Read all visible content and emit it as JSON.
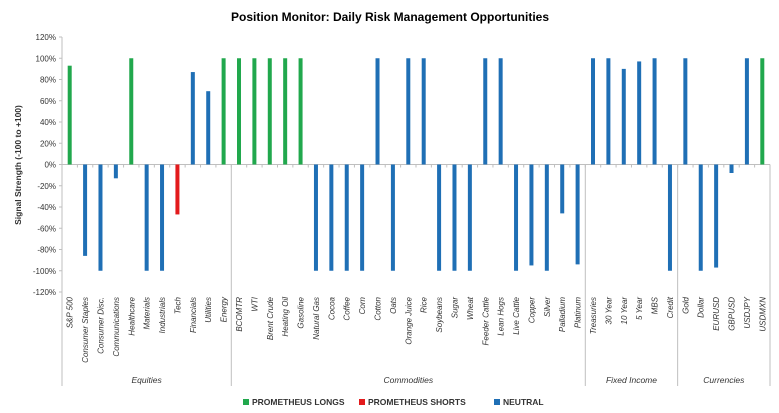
{
  "chart_data": {
    "type": "bar",
    "title": "Position Monitor: Daily Risk Management Opportunities",
    "ylabel": "Signal Strength (-100 to +100)",
    "xlabel": "",
    "ylim": [
      -120,
      120
    ],
    "yticks": [
      -120,
      -100,
      -80,
      -60,
      -40,
      -20,
      0,
      20,
      40,
      60,
      80,
      100,
      120
    ],
    "ytick_labels": [
      "-120%",
      "-100%",
      "-80%",
      "-60%",
      "-40%",
      "-20%",
      "0%",
      "20%",
      "40%",
      "60%",
      "80%",
      "100%",
      "120%"
    ],
    "grid": false,
    "legend_position": "bottom",
    "colors": {
      "long": "#21A84D",
      "short": "#E31A1C",
      "neutral": "#1F6FB5"
    },
    "legend": [
      {
        "key": "long",
        "label": "PROMETHEUS LONGS"
      },
      {
        "key": "short",
        "label": "PROMETHEUS SHORTS"
      },
      {
        "key": "neutral",
        "label": "NEUTRAL"
      }
    ],
    "groups": [
      {
        "label": "Equities",
        "categories": [
          "S&P 500",
          "Consumer Staples",
          "Consumer Disc.",
          "Communications",
          "Healthcare",
          "Materials",
          "Industrials",
          "Tech",
          "Financials",
          "Utilities",
          "Energy"
        ]
      },
      {
        "label": "Commodities",
        "categories": [
          "BCOMTR",
          "WTI",
          "Brent Crude",
          "Heating Oil",
          "Gasoline",
          "Natural Gas",
          "Cocoa",
          "Coffee",
          "Corn",
          "Cotton",
          "Oats",
          "Orange Juice",
          "Rice",
          "Soybeans",
          "Sugar",
          "Wheat",
          "Feeder Cattle",
          "Lean Hogs",
          "Live Cattle",
          "Copper",
          "Silver",
          "Palladium",
          "Platinum"
        ]
      },
      {
        "label": "Fixed Income",
        "categories": [
          "Treasuries",
          "30 Year",
          "10 Year",
          "5 Year",
          "MBS",
          "Credit"
        ]
      },
      {
        "label": "Currencies",
        "categories": [
          "Gold",
          "Dollar",
          "EURUSD",
          "GBPUSD",
          "USDJPY",
          "USDMXN"
        ]
      }
    ],
    "series": [
      {
        "name": "PROMETHEUS LONGS",
        "key": "long",
        "values": [
          93,
          0,
          0,
          0,
          100,
          0,
          0,
          0,
          0,
          0,
          100,
          100,
          100,
          100,
          100,
          100,
          0,
          0,
          0,
          0,
          0,
          0,
          0,
          0,
          0,
          0,
          0,
          0,
          0,
          0,
          0,
          0,
          0,
          0,
          0,
          0,
          0,
          0,
          0,
          0,
          0,
          0,
          0,
          0,
          0,
          100
        ]
      },
      {
        "name": "PROMETHEUS SHORTS",
        "key": "short",
        "values": [
          0,
          0,
          0,
          0,
          0,
          0,
          0,
          -47,
          0,
          0,
          0,
          0,
          0,
          0,
          0,
          0,
          0,
          0,
          0,
          0,
          0,
          0,
          0,
          0,
          0,
          0,
          0,
          0,
          0,
          0,
          0,
          0,
          0,
          0,
          0,
          0,
          0,
          0,
          0,
          0,
          0,
          0,
          0,
          0,
          0,
          0
        ]
      },
      {
        "name": "NEUTRAL",
        "key": "neutral",
        "values": [
          0,
          -86,
          -100,
          -13,
          0,
          -100,
          -100,
          0,
          87,
          69,
          0,
          0,
          0,
          0,
          0,
          0,
          -100,
          -100,
          -100,
          -100,
          100,
          -100,
          100,
          100,
          -100,
          -100,
          -100,
          100,
          100,
          -100,
          -95,
          -100,
          -46,
          -94,
          100,
          100,
          90,
          97,
          100,
          -100,
          100,
          -100,
          -97,
          -8,
          100,
          0
        ]
      }
    ]
  }
}
